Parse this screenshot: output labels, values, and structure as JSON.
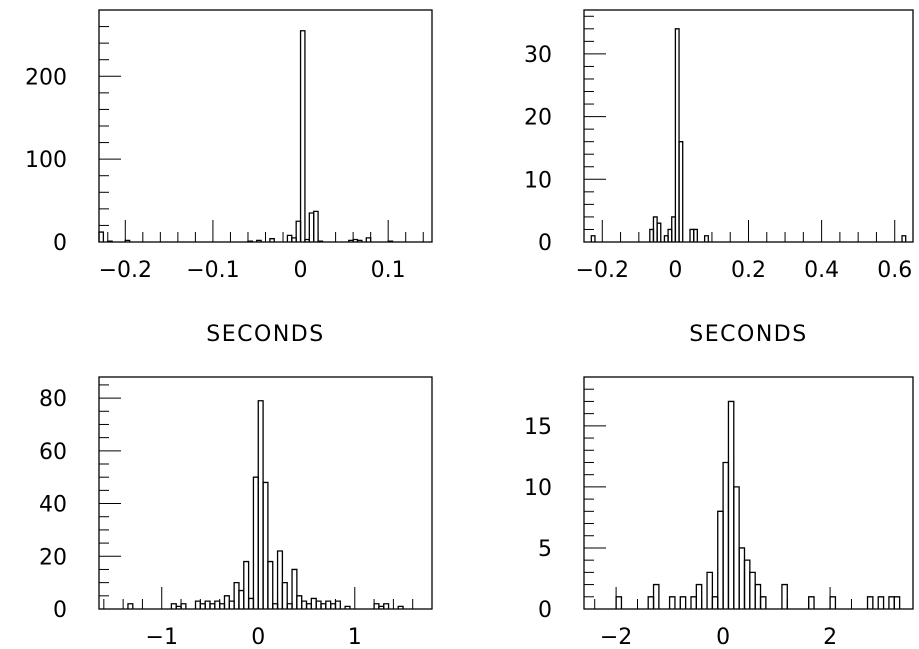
{
  "chart_data": [
    {
      "type": "bar",
      "xlabel": "SECONDS",
      "ylabel": "",
      "xlim": [
        -0.23,
        0.15
      ],
      "ylim": [
        0,
        280
      ],
      "xticks": [
        -0.2,
        -0.1,
        0,
        0.1
      ],
      "xtick_labels": [
        "−0.2",
        "−0.1",
        "0",
        "0.1"
      ],
      "yticks": [
        0,
        100,
        200
      ],
      "ytick_labels": [
        "0",
        "100",
        "200"
      ],
      "y_minor_step": 20,
      "x_minor_step": 0.02,
      "bin_width": 0.005,
      "bins": [
        {
          "x0": -0.23,
          "v": 12
        },
        {
          "x0": -0.22,
          "v": 1
        },
        {
          "x0": -0.2,
          "v": 2
        },
        {
          "x0": -0.06,
          "v": 1
        },
        {
          "x0": -0.05,
          "v": 2
        },
        {
          "x0": -0.035,
          "v": 4
        },
        {
          "x0": -0.015,
          "v": 8
        },
        {
          "x0": -0.01,
          "v": 5
        },
        {
          "x0": -0.005,
          "v": 25
        },
        {
          "x0": 0.0,
          "v": 255
        },
        {
          "x0": 0.005,
          "v": 3
        },
        {
          "x0": 0.01,
          "v": 35
        },
        {
          "x0": 0.015,
          "v": 37
        },
        {
          "x0": 0.02,
          "v": 1
        },
        {
          "x0": 0.055,
          "v": 2
        },
        {
          "x0": 0.06,
          "v": 3
        },
        {
          "x0": 0.065,
          "v": 2
        },
        {
          "x0": 0.075,
          "v": 5
        },
        {
          "x0": 0.1,
          "v": 1
        }
      ]
    },
    {
      "type": "bar",
      "xlabel": "SECONDS",
      "ylabel": "",
      "xlim": [
        -0.25,
        0.65
      ],
      "ylim": [
        0,
        37
      ],
      "xticks": [
        -0.2,
        0,
        0.2,
        0.4,
        0.6
      ],
      "xtick_labels": [
        "−0.2",
        "0",
        "0.2",
        "0.4",
        "0.6"
      ],
      "yticks": [
        0,
        10,
        20,
        30
      ],
      "ytick_labels": [
        "0",
        "10",
        "20",
        "30"
      ],
      "y_minor_step": 2,
      "x_minor_step": 0.05,
      "bin_width": 0.01,
      "bins": [
        {
          "x0": -0.23,
          "v": 1
        },
        {
          "x0": -0.07,
          "v": 2
        },
        {
          "x0": -0.06,
          "v": 4
        },
        {
          "x0": -0.05,
          "v": 3
        },
        {
          "x0": -0.03,
          "v": 1
        },
        {
          "x0": -0.02,
          "v": 2
        },
        {
          "x0": -0.01,
          "v": 4
        },
        {
          "x0": 0.0,
          "v": 34
        },
        {
          "x0": 0.01,
          "v": 16
        },
        {
          "x0": 0.04,
          "v": 2
        },
        {
          "x0": 0.05,
          "v": 2
        },
        {
          "x0": 0.08,
          "v": 1
        },
        {
          "x0": 0.62,
          "v": 1
        }
      ]
    },
    {
      "type": "bar",
      "xlabel": "",
      "ylabel": "",
      "xlim": [
        -1.65,
        1.8
      ],
      "ylim": [
        0,
        88
      ],
      "xticks": [
        -1,
        0,
        1
      ],
      "xtick_labels": [
        "−1",
        "0",
        "1"
      ],
      "yticks": [
        0,
        20,
        40,
        60,
        80
      ],
      "ytick_labels": [
        "0",
        "20",
        "40",
        "60",
        "80"
      ],
      "y_minor_step": 5,
      "x_minor_step": 0.2,
      "bin_width": 0.05,
      "bins": [
        {
          "x0": -1.35,
          "v": 2
        },
        {
          "x0": -0.9,
          "v": 2
        },
        {
          "x0": -0.85,
          "v": 1
        },
        {
          "x0": -0.8,
          "v": 2
        },
        {
          "x0": -0.65,
          "v": 3
        },
        {
          "x0": -0.6,
          "v": 2
        },
        {
          "x0": -0.55,
          "v": 3
        },
        {
          "x0": -0.5,
          "v": 2
        },
        {
          "x0": -0.45,
          "v": 3
        },
        {
          "x0": -0.4,
          "v": 2
        },
        {
          "x0": -0.35,
          "v": 5
        },
        {
          "x0": -0.3,
          "v": 3
        },
        {
          "x0": -0.25,
          "v": 10
        },
        {
          "x0": -0.2,
          "v": 7
        },
        {
          "x0": -0.15,
          "v": 18
        },
        {
          "x0": -0.1,
          "v": 4
        },
        {
          "x0": -0.05,
          "v": 50
        },
        {
          "x0": 0.0,
          "v": 79
        },
        {
          "x0": 0.05,
          "v": 48
        },
        {
          "x0": 0.1,
          "v": 18
        },
        {
          "x0": 0.15,
          "v": 2
        },
        {
          "x0": 0.2,
          "v": 22
        },
        {
          "x0": 0.25,
          "v": 10
        },
        {
          "x0": 0.3,
          "v": 2
        },
        {
          "x0": 0.35,
          "v": 15
        },
        {
          "x0": 0.4,
          "v": 5
        },
        {
          "x0": 0.45,
          "v": 3
        },
        {
          "x0": 0.5,
          "v": 2
        },
        {
          "x0": 0.55,
          "v": 4
        },
        {
          "x0": 0.6,
          "v": 3
        },
        {
          "x0": 0.65,
          "v": 2
        },
        {
          "x0": 0.7,
          "v": 3
        },
        {
          "x0": 0.75,
          "v": 2
        },
        {
          "x0": 0.8,
          "v": 3
        },
        {
          "x0": 0.9,
          "v": 1
        },
        {
          "x0": 1.2,
          "v": 2
        },
        {
          "x0": 1.25,
          "v": 1
        },
        {
          "x0": 1.3,
          "v": 2
        },
        {
          "x0": 1.45,
          "v": 1
        }
      ]
    },
    {
      "type": "bar",
      "xlabel": "",
      "ylabel": "",
      "xlim": [
        -2.6,
        3.55
      ],
      "ylim": [
        0,
        19
      ],
      "xticks": [
        -2,
        0,
        2
      ],
      "xtick_labels": [
        "−2",
        "0",
        "2"
      ],
      "yticks": [
        0,
        5,
        10,
        15
      ],
      "ytick_labels": [
        "0",
        "5",
        "10",
        "15"
      ],
      "y_minor_step": 1,
      "x_minor_step": 0.4,
      "bin_width": 0.1,
      "bins": [
        {
          "x0": -2.0,
          "v": 1
        },
        {
          "x0": -1.4,
          "v": 1
        },
        {
          "x0": -1.3,
          "v": 2
        },
        {
          "x0": -1.0,
          "v": 1
        },
        {
          "x0": -0.8,
          "v": 1
        },
        {
          "x0": -0.6,
          "v": 1
        },
        {
          "x0": -0.5,
          "v": 2
        },
        {
          "x0": -0.3,
          "v": 3
        },
        {
          "x0": -0.2,
          "v": 1
        },
        {
          "x0": -0.1,
          "v": 8
        },
        {
          "x0": 0.0,
          "v": 12
        },
        {
          "x0": 0.1,
          "v": 17
        },
        {
          "x0": 0.2,
          "v": 10
        },
        {
          "x0": 0.3,
          "v": 5
        },
        {
          "x0": 0.4,
          "v": 4
        },
        {
          "x0": 0.5,
          "v": 3
        },
        {
          "x0": 0.6,
          "v": 2
        },
        {
          "x0": 0.7,
          "v": 1
        },
        {
          "x0": 1.1,
          "v": 2
        },
        {
          "x0": 1.6,
          "v": 1
        },
        {
          "x0": 2.0,
          "v": 1
        },
        {
          "x0": 2.7,
          "v": 1
        },
        {
          "x0": 2.9,
          "v": 1
        },
        {
          "x0": 3.1,
          "v": 1
        },
        {
          "x0": 3.2,
          "v": 1
        }
      ]
    }
  ]
}
